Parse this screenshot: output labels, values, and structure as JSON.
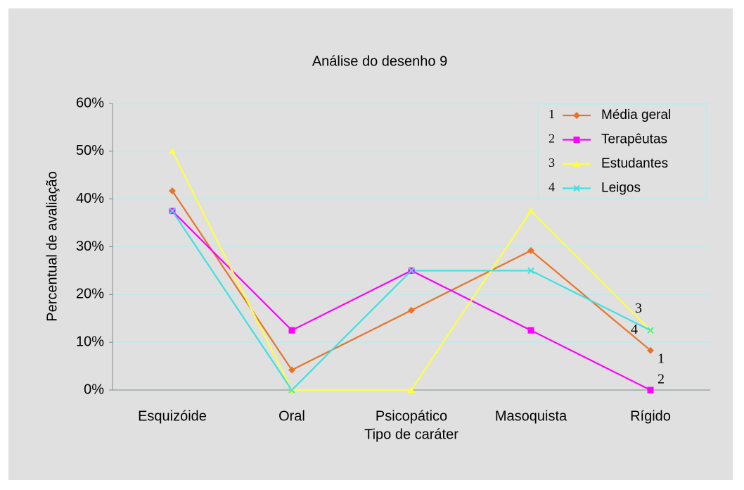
{
  "chart_data": {
    "type": "line",
    "title": "Análise do desenho 9",
    "x_label": "Tipo de caráter",
    "y_label": "Percentual de avaliação",
    "categories": [
      "Esquizóide",
      "Oral",
      "Psicopático",
      "Masoquista",
      "Rígido"
    ],
    "series": [
      {
        "name": "Média geral",
        "label": "1",
        "color": "#e8742a",
        "marker": "diamond",
        "values": [
          41.7,
          4.2,
          16.7,
          29.2,
          8.3
        ]
      },
      {
        "name": "Terapêutas",
        "label": "2",
        "color": "#ff00ff",
        "marker": "square",
        "values": [
          37.5,
          12.5,
          25,
          12.5,
          0
        ]
      },
      {
        "name": "Estudantes",
        "label": "3",
        "color": "#ffff40",
        "marker": "triangle",
        "values": [
          50,
          0,
          0,
          37.5,
          12.5
        ]
      },
      {
        "name": "Leigos",
        "label": "4",
        "color": "#40e0e0",
        "marker": "x",
        "values": [
          37.5,
          0,
          25,
          25,
          12.5
        ]
      }
    ],
    "ylim": [
      0,
      60
    ],
    "yticks": [
      {
        "value": 0,
        "label": "0%"
      },
      {
        "value": 10,
        "label": "10%"
      },
      {
        "value": 20,
        "label": "20%"
      },
      {
        "value": 30,
        "label": "30%"
      },
      {
        "value": 40,
        "label": "40%"
      },
      {
        "value": 50,
        "label": "50%"
      },
      {
        "value": 60,
        "label": "60%"
      }
    ],
    "grid": true,
    "legend": "upper right"
  }
}
